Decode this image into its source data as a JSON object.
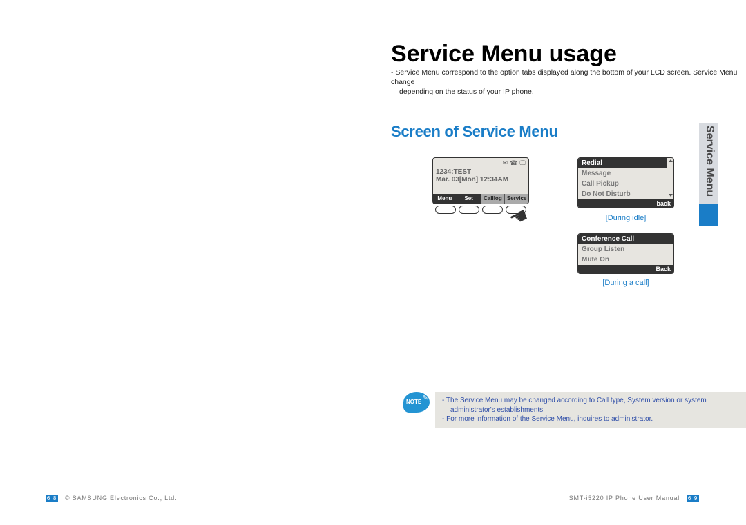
{
  "title": "Service Menu usage",
  "subtitle_l1": "- Service Menu correspond to the option tabs displayed along the bottom of your LCD screen. Service Menu change",
  "subtitle_l2": "depending on the status of your IP phone.",
  "section_heading": "Screen of Service Menu",
  "lcd": {
    "line1": "1234:TEST",
    "line2": "Mar. 03[Mon] 12:34AM",
    "tabs": [
      "Menu",
      "Set",
      "Calllog",
      "Service"
    ]
  },
  "idle_menu": {
    "items": [
      "Redial",
      "Message",
      "Call Pickup",
      "Do Not Disturb"
    ],
    "back": "back",
    "caption": "[During idle]"
  },
  "call_menu": {
    "items": [
      "Conference Call",
      "Group Listen",
      "Mute On"
    ],
    "back": "Back",
    "caption": "[During a call]"
  },
  "side_label": "Service Menu",
  "note": {
    "l1": "- The Service Menu may be changed according to Call type, System version or system",
    "l2": "administrator's establishments.",
    "l3": "- For more information of the Service Menu, inquires to administrator."
  },
  "footer": {
    "left_num_a": "6",
    "left_num_b": "8",
    "left_text": "© SAMSUNG Electronics Co., Ltd.",
    "right_text": "SMT-i5220 IP Phone User Manual",
    "right_num_a": "6",
    "right_num_b": "9"
  }
}
